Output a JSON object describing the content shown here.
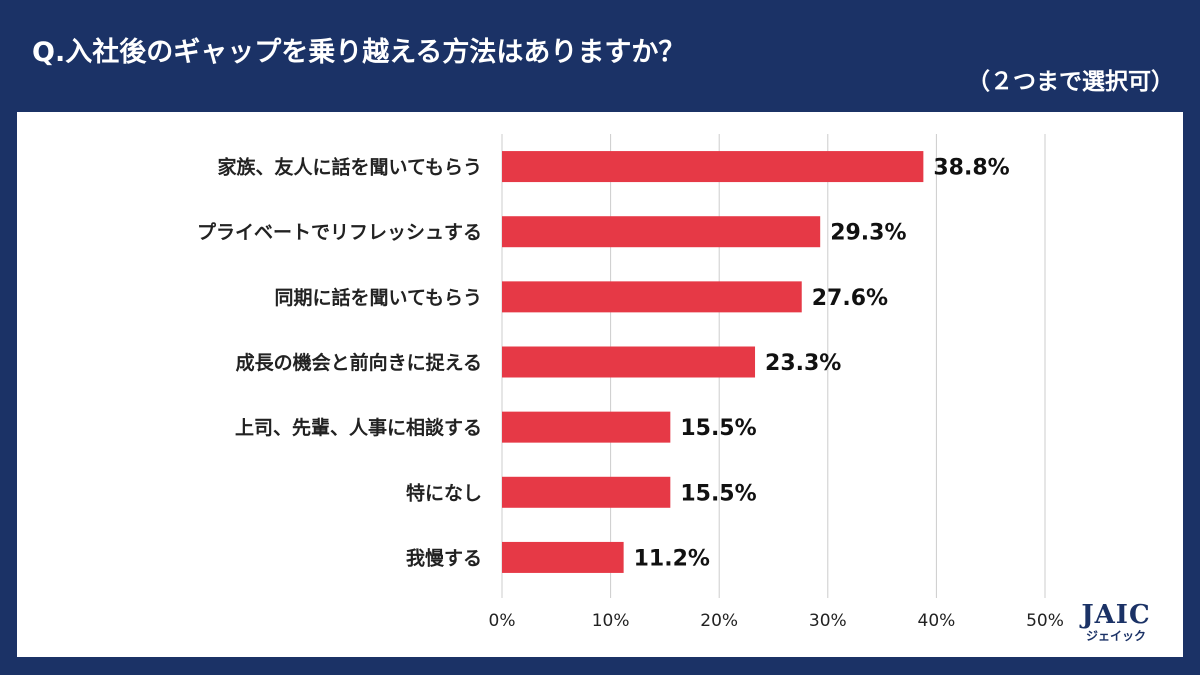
{
  "header": {
    "title": "Q.入社後のギャップを乗り越える方法はありますか？",
    "subtitle": "（２つまで選択可）"
  },
  "logo": {
    "main": "JAIC",
    "sub": "ジェイック"
  },
  "colors": {
    "bar": "#e63946",
    "background": "#1b3266",
    "panel": "#ffffff",
    "grid": "#cccccc"
  },
  "chart_data": {
    "type": "bar",
    "orientation": "horizontal",
    "title": "Q.入社後のギャップを乗り越える方法はありますか？（２つまで選択可）",
    "categories": [
      "家族、友人に話を聞いてもらう",
      "プライベートでリフレッシュする",
      "同期に話を聞いてもらう",
      "成長の機会と前向きに捉える",
      "上司、先輩、人事に相談する",
      "特になし",
      "我慢する"
    ],
    "values": [
      38.8,
      29.3,
      27.6,
      23.3,
      15.5,
      15.5,
      11.2
    ],
    "value_labels": [
      "38.8%",
      "29.3%",
      "27.6%",
      "23.3%",
      "15.5%",
      "15.5%",
      "11.2%"
    ],
    "xlim": [
      0,
      50
    ],
    "ticks": [
      0,
      10,
      20,
      30,
      40,
      50
    ],
    "tick_labels": [
      "0%",
      "10%",
      "20%",
      "30%",
      "40%",
      "50%"
    ],
    "grid": true,
    "xlabel": "",
    "ylabel": ""
  }
}
